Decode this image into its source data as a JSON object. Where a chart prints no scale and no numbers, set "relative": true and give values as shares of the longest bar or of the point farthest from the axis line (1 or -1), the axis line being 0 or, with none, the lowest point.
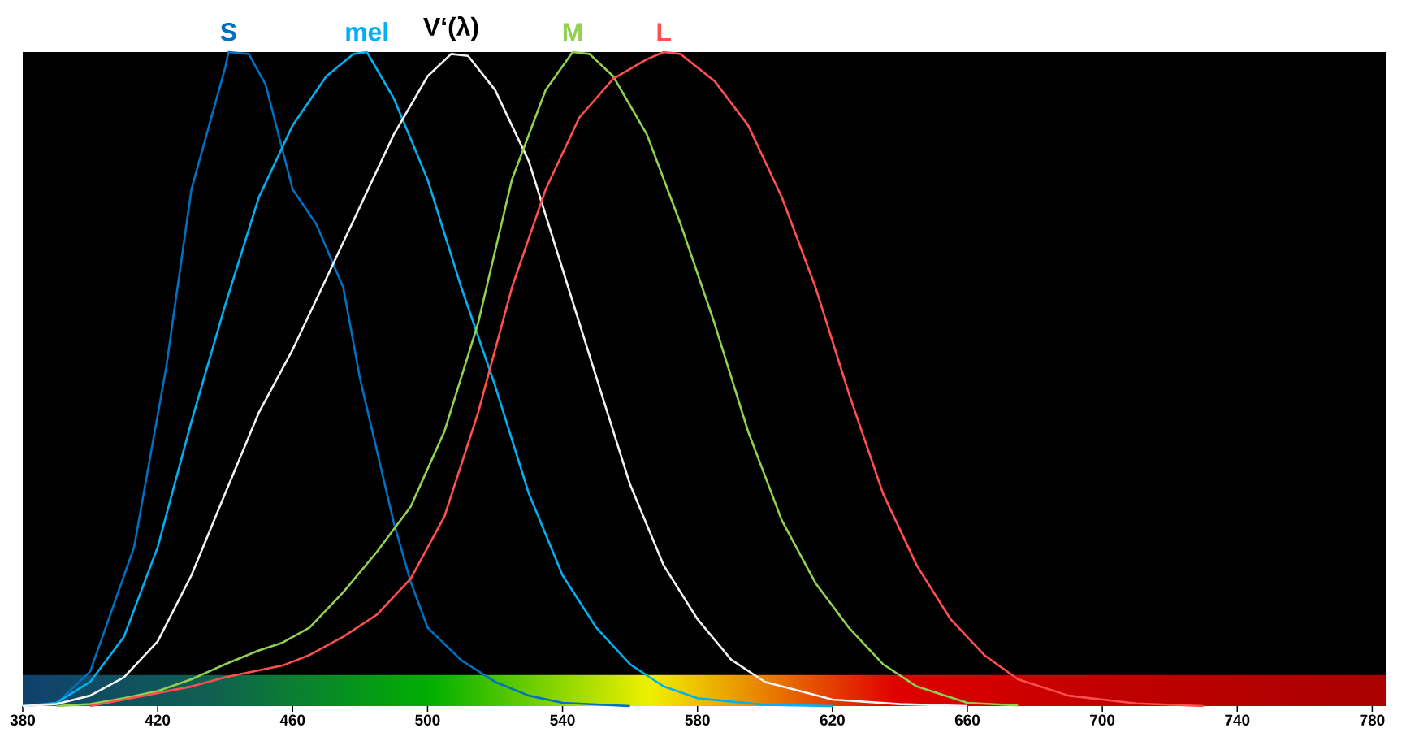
{
  "chart_data": {
    "type": "line",
    "relative": true,
    "xlim": [
      380,
      784
    ],
    "xticks": [
      380,
      420,
      460,
      500,
      540,
      580,
      620,
      660,
      700,
      740,
      780
    ],
    "series": [
      {
        "name": "S",
        "color": "#0070c0",
        "x": [
          380,
          390,
          400,
          413,
          422.5,
          430,
          440,
          441,
          447,
          452,
          460,
          467,
          475,
          480,
          485,
          490,
          495,
          500,
          510,
          520,
          530,
          540,
          560
        ],
        "values": [
          0,
          0.004,
          0.053,
          0.243,
          0.517,
          0.79,
          0.976,
          1.0,
          0.997,
          0.95,
          0.79,
          0.737,
          0.64,
          0.5,
          0.39,
          0.28,
          0.19,
          0.12,
          0.07,
          0.037,
          0.016,
          0.005,
          0
        ]
      },
      {
        "name": "mel",
        "color": "#00b0f0",
        "x": [
          380,
          390,
          400,
          410,
          420,
          430,
          440,
          450,
          460,
          470,
          478,
          482,
          490,
          500,
          510,
          520,
          530,
          540,
          550,
          560,
          570,
          580,
          600,
          620
        ],
        "values": [
          0,
          0.005,
          0.037,
          0.106,
          0.243,
          0.435,
          0.613,
          0.778,
          0.888,
          0.963,
          0.997,
          1.0,
          0.929,
          0.805,
          0.64,
          0.49,
          0.325,
          0.2,
          0.12,
          0.064,
          0.03,
          0.012,
          0.002,
          0
        ]
      },
      {
        "name": "V‘(λ)",
        "color": "#f2f2f2",
        "x": [
          380,
          390,
          400,
          410,
          420,
          430,
          440,
          450,
          460,
          470,
          480,
          490,
          500,
          507,
          512,
          520,
          530,
          540,
          550,
          560,
          570,
          580,
          590,
          600,
          620,
          640,
          660
        ],
        "values": [
          0,
          0.003,
          0.016,
          0.044,
          0.099,
          0.2,
          0.325,
          0.449,
          0.545,
          0.654,
          0.764,
          0.874,
          0.963,
          0.997,
          0.994,
          0.942,
          0.833,
          0.668,
          0.503,
          0.339,
          0.215,
          0.133,
          0.071,
          0.037,
          0.01,
          0.003,
          0
        ]
      },
      {
        "name": "M",
        "color": "#92d050",
        "x": [
          390,
          400,
          410,
          420,
          430,
          440,
          450,
          457,
          465,
          475,
          485,
          495,
          505,
          515,
          525,
          535,
          543,
          548,
          555,
          565,
          575,
          585,
          595,
          605,
          615,
          625,
          635,
          645,
          660,
          675
        ],
        "values": [
          0,
          0.003,
          0.012,
          0.023,
          0.041,
          0.064,
          0.085,
          0.097,
          0.12,
          0.174,
          0.236,
          0.305,
          0.42,
          0.586,
          0.805,
          0.942,
          1.0,
          0.997,
          0.963,
          0.874,
          0.737,
          0.586,
          0.42,
          0.284,
          0.188,
          0.119,
          0.064,
          0.03,
          0.005,
          0.001
        ]
      },
      {
        "name": "L",
        "color": "#ff4f4f",
        "x": [
          400,
          410,
          420,
          430,
          440,
          457,
          465,
          475,
          485,
          495,
          505,
          515,
          525,
          535,
          545,
          555,
          565,
          570,
          575,
          585,
          595,
          605,
          615,
          625,
          635,
          645,
          655,
          665,
          675,
          690,
          710,
          730
        ],
        "values": [
          0,
          0.01,
          0.02,
          0.03,
          0.044,
          0.062,
          0.078,
          0.106,
          0.14,
          0.195,
          0.29,
          0.449,
          0.64,
          0.79,
          0.9,
          0.959,
          0.989,
          1.0,
          0.997,
          0.956,
          0.888,
          0.778,
          0.64,
          0.476,
          0.325,
          0.215,
          0.133,
          0.078,
          0.041,
          0.016,
          0.004,
          0
        ]
      }
    ]
  }
}
